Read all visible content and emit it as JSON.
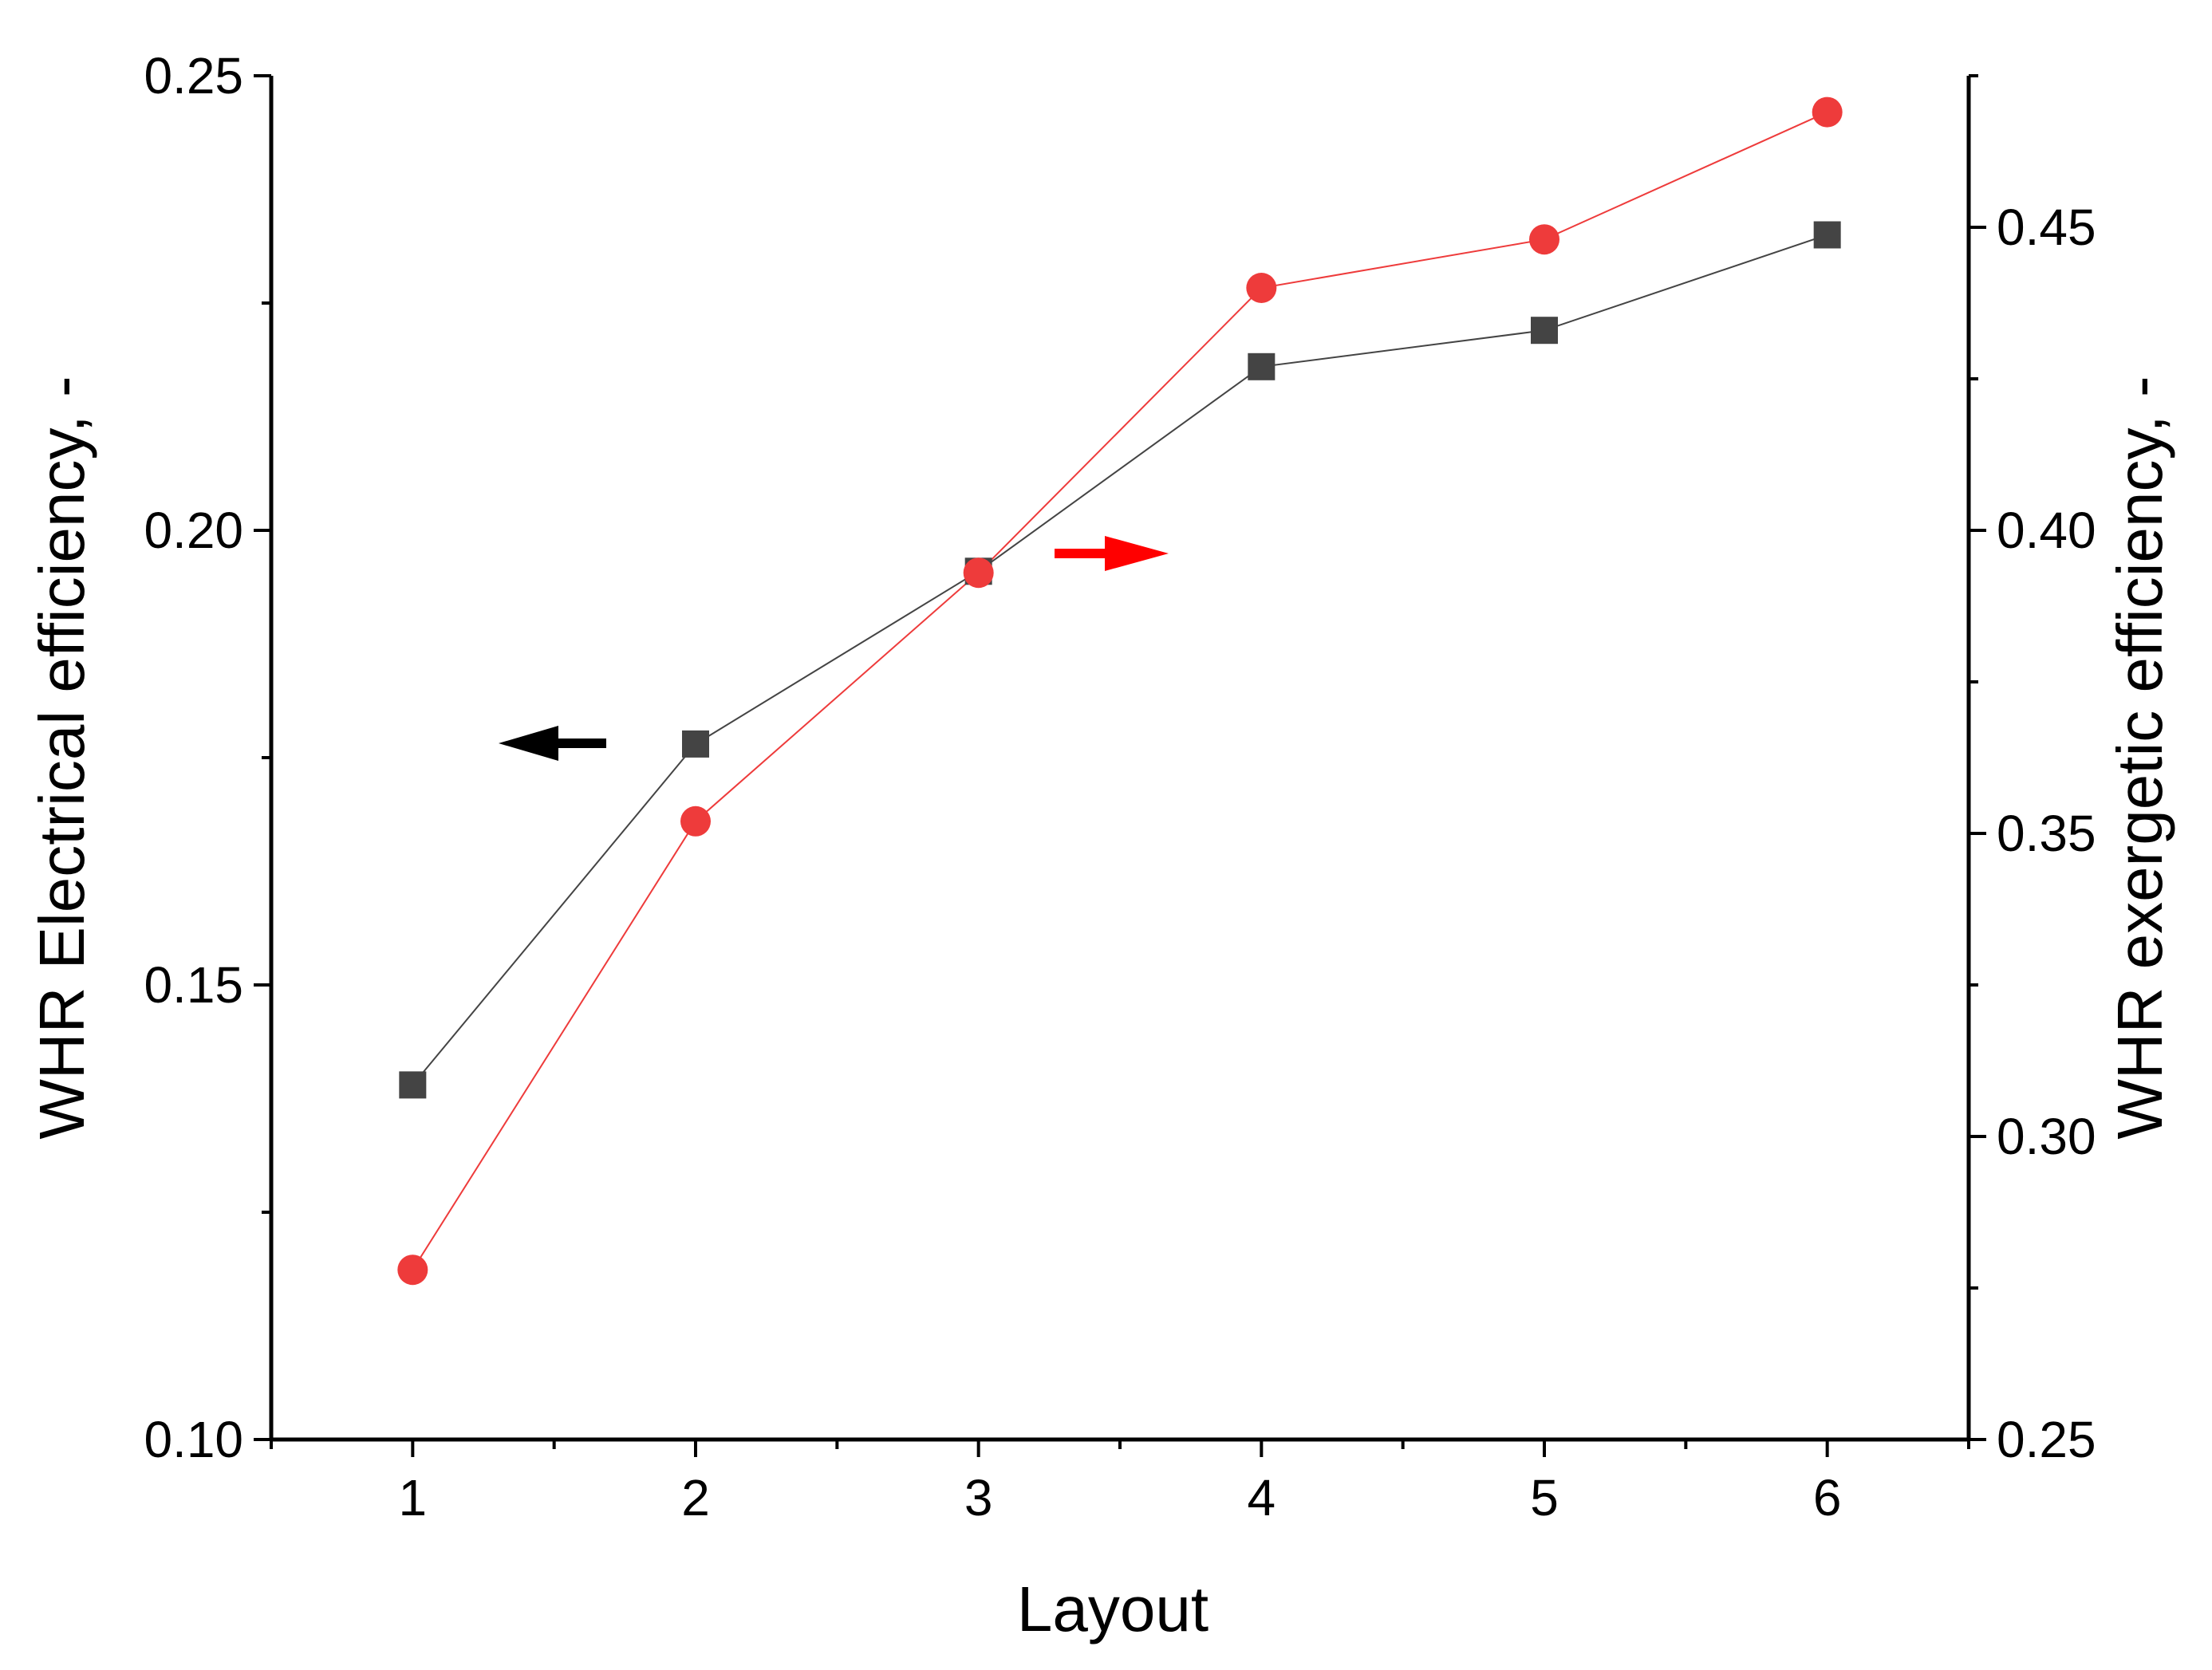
{
  "chart_data": {
    "type": "line",
    "xlabel": "Layout",
    "ylabel_left": "WHR Electrical efficiency, -",
    "ylabel_right": "WHR exergetic efficiency, -",
    "x": [
      1,
      2,
      3,
      4,
      5,
      6
    ],
    "xlim": [
      0.5,
      6.5
    ],
    "ylim_left": [
      0.1,
      0.25
    ],
    "ylim_right": [
      0.25,
      0.475
    ],
    "x_ticks": [
      "1",
      "2",
      "3",
      "4",
      "5",
      "6"
    ],
    "y_ticks_left": [
      "0.10",
      "0.15",
      "0.20",
      "0.25"
    ],
    "y_ticks_right": [
      "0.25",
      "0.30",
      "0.35",
      "0.40",
      "0.45"
    ],
    "grid": false,
    "series": [
      {
        "axis": "left",
        "marker": "square",
        "color": "#444444",
        "values": [
          0.139,
          0.1765,
          0.1955,
          0.218,
          0.222,
          0.2325
        ]
      },
      {
        "axis": "right",
        "marker": "circle",
        "color": "#ee3b3b",
        "values": [
          0.278,
          0.352,
          0.393,
          0.44,
          0.448,
          0.469
        ]
      }
    ],
    "annotations": [
      {
        "type": "arrow",
        "direction": "left",
        "color": "#000000",
        "points_to": "left axis"
      },
      {
        "type": "arrow",
        "direction": "right",
        "color": "#ff0000",
        "points_to": "right axis"
      }
    ]
  }
}
